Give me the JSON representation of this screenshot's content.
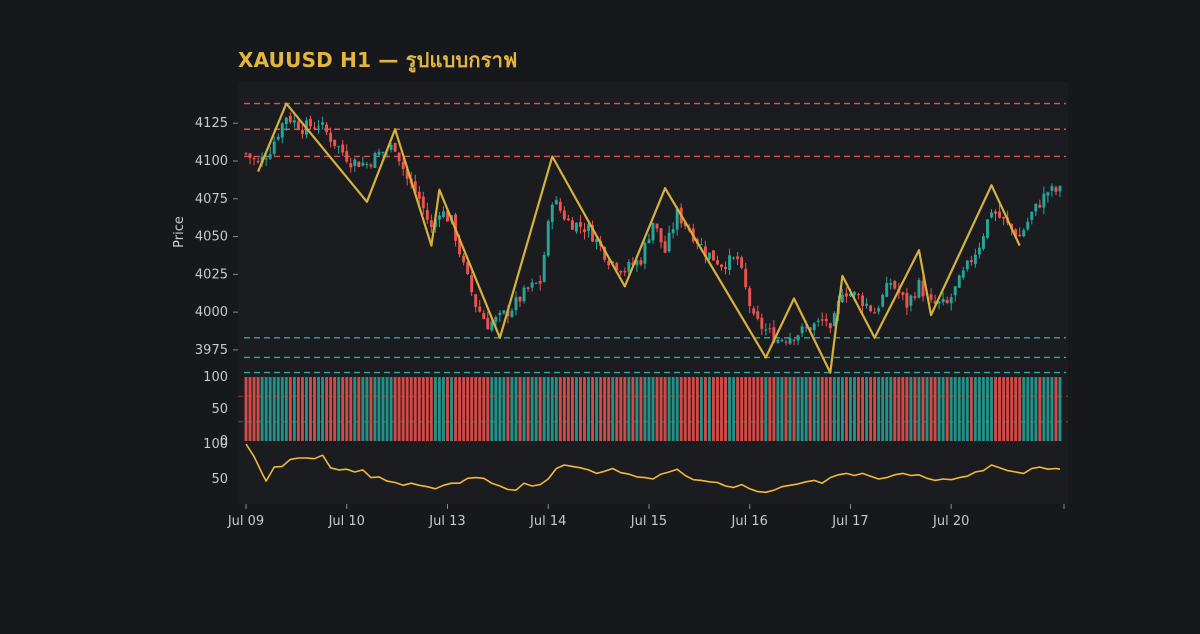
{
  "title": "XAUUSD H1 — รูปแบบกราฟ",
  "colors": {
    "background": "#17181b",
    "panel": "#1b1c20",
    "up": "#26a69a",
    "down": "#ef5350",
    "zigzag": "#d6b23c",
    "indicator_line": "#f0b93a",
    "resistance": "#d9534f",
    "support": "#2fa8a0",
    "text": "#c9c9c9",
    "title": "#e2b63f"
  },
  "chart_data": [
    {
      "type": "candlestick",
      "title": "XAUUSD H1 — รูปแบบกราฟ",
      "ylabel": "Price",
      "ylim": [
        3967,
        4143
      ],
      "yticks": [
        3975,
        4000,
        4025,
        4050,
        4075,
        4100,
        4125
      ],
      "xticks": [
        "Jul 09",
        "Jul 10",
        "Jul 13",
        "Jul 14",
        "Jul 15",
        "Jul 16",
        "Jul 17",
        "Jul 20"
      ],
      "xrange_bars": [
        0,
        202
      ],
      "xtick_bars": [
        0,
        25,
        50,
        75,
        100,
        125,
        150,
        175
      ],
      "grid": false,
      "resistance_levels": [
        4138,
        4121,
        4103
      ],
      "support_levels": [
        3983,
        3970,
        3960
      ],
      "zigzag": [
        {
          "bar": 3,
          "price": 4093
        },
        {
          "bar": 10,
          "price": 4138
        },
        {
          "bar": 30,
          "price": 4073
        },
        {
          "bar": 37,
          "price": 4121
        },
        {
          "bar": 46,
          "price": 4044
        },
        {
          "bar": 48,
          "price": 4081
        },
        {
          "bar": 63,
          "price": 3983
        },
        {
          "bar": 76,
          "price": 4103
        },
        {
          "bar": 94,
          "price": 4017
        },
        {
          "bar": 104,
          "price": 4082
        },
        {
          "bar": 129,
          "price": 3970
        },
        {
          "bar": 136,
          "price": 4009
        },
        {
          "bar": 145,
          "price": 3960
        },
        {
          "bar": 148,
          "price": 4024
        },
        {
          "bar": 156,
          "price": 3983
        },
        {
          "bar": 167,
          "price": 4041
        },
        {
          "bar": 170,
          "price": 3998
        },
        {
          "bar": 185,
          "price": 4084
        },
        {
          "bar": 192,
          "price": 4044
        }
      ],
      "closes_anchor": [
        [
          0,
          4105
        ],
        [
          3,
          4098
        ],
        [
          6,
          4108
        ],
        [
          10,
          4130
        ],
        [
          14,
          4122
        ],
        [
          18,
          4125
        ],
        [
          22,
          4112
        ],
        [
          26,
          4100
        ],
        [
          30,
          4098
        ],
        [
          33,
          4105
        ],
        [
          37,
          4110
        ],
        [
          40,
          4088
        ],
        [
          43,
          4075
        ],
        [
          46,
          4055
        ],
        [
          48,
          4068
        ],
        [
          51,
          4060
        ],
        [
          54,
          4030
        ],
        [
          57,
          4005
        ],
        [
          60,
          3992
        ],
        [
          63,
          3996
        ],
        [
          66,
          4003
        ],
        [
          70,
          4015
        ],
        [
          73,
          4020
        ],
        [
          76,
          4075
        ],
        [
          80,
          4060
        ],
        [
          85,
          4055
        ],
        [
          90,
          4035
        ],
        [
          94,
          4028
        ],
        [
          98,
          4035
        ],
        [
          101,
          4060
        ],
        [
          104,
          4040
        ],
        [
          107,
          4065
        ],
        [
          110,
          4055
        ],
        [
          114,
          4040
        ],
        [
          118,
          4032
        ],
        [
          122,
          4035
        ],
        [
          126,
          3995
        ],
        [
          129,
          3988
        ],
        [
          132,
          3982
        ],
        [
          136,
          3985
        ],
        [
          140,
          3990
        ],
        [
          144,
          3995
        ],
        [
          145,
          3985
        ],
        [
          148,
          4015
        ],
        [
          152,
          4010
        ],
        [
          156,
          4000
        ],
        [
          160,
          4020
        ],
        [
          164,
          4005
        ],
        [
          167,
          4018
        ],
        [
          170,
          4005
        ],
        [
          174,
          4005
        ],
        [
          178,
          4025
        ],
        [
          182,
          4045
        ],
        [
          185,
          4068
        ],
        [
          188,
          4060
        ],
        [
          192,
          4050
        ],
        [
          195,
          4065
        ],
        [
          199,
          4080
        ],
        [
          202,
          4080
        ]
      ],
      "volume_panel": {
        "ylim": [
          0,
          100
        ],
        "yticks": [
          0,
          50,
          100
        ],
        "ref_lines": [
          70,
          30
        ]
      },
      "indicator_panel": {
        "yticks": [
          50,
          100
        ],
        "ylim": [
          20,
          100
        ],
        "values_anchor": [
          [
            0,
            100
          ],
          [
            2,
            82
          ],
          [
            4,
            58
          ],
          [
            5,
            47
          ],
          [
            7,
            67
          ],
          [
            9,
            68
          ],
          [
            11,
            78
          ],
          [
            13,
            80
          ],
          [
            15,
            80
          ],
          [
            17,
            79
          ],
          [
            19,
            84
          ],
          [
            21,
            66
          ],
          [
            23,
            63
          ],
          [
            25,
            64
          ],
          [
            27,
            60
          ],
          [
            29,
            63
          ],
          [
            31,
            52
          ],
          [
            33,
            53
          ],
          [
            35,
            47
          ],
          [
            37,
            45
          ],
          [
            39,
            41
          ],
          [
            41,
            44
          ],
          [
            43,
            41
          ],
          [
            45,
            39
          ],
          [
            47,
            36
          ],
          [
            49,
            41
          ],
          [
            51,
            44
          ],
          [
            53,
            44
          ],
          [
            55,
            51
          ],
          [
            57,
            52
          ],
          [
            59,
            51
          ],
          [
            61,
            44
          ],
          [
            63,
            40
          ],
          [
            65,
            35
          ],
          [
            67,
            34
          ],
          [
            69,
            44
          ],
          [
            71,
            40
          ],
          [
            73,
            42
          ],
          [
            75,
            50
          ],
          [
            77,
            65
          ],
          [
            79,
            70
          ],
          [
            81,
            68
          ],
          [
            83,
            66
          ],
          [
            85,
            63
          ],
          [
            87,
            58
          ],
          [
            89,
            61
          ],
          [
            91,
            65
          ],
          [
            93,
            59
          ],
          [
            95,
            57
          ],
          [
            97,
            53
          ],
          [
            99,
            52
          ],
          [
            101,
            50
          ],
          [
            103,
            57
          ],
          [
            105,
            60
          ],
          [
            107,
            64
          ],
          [
            109,
            55
          ],
          [
            111,
            49
          ],
          [
            113,
            48
          ],
          [
            115,
            46
          ],
          [
            117,
            45
          ],
          [
            119,
            40
          ],
          [
            121,
            38
          ],
          [
            123,
            42
          ],
          [
            125,
            36
          ],
          [
            127,
            32
          ],
          [
            129,
            31
          ],
          [
            131,
            34
          ],
          [
            133,
            39
          ],
          [
            135,
            41
          ],
          [
            137,
            43
          ],
          [
            139,
            46
          ],
          [
            141,
            48
          ],
          [
            143,
            44
          ],
          [
            145,
            52
          ],
          [
            147,
            56
          ],
          [
            149,
            58
          ],
          [
            151,
            55
          ],
          [
            153,
            58
          ],
          [
            155,
            54
          ],
          [
            157,
            50
          ],
          [
            159,
            52
          ],
          [
            161,
            56
          ],
          [
            163,
            58
          ],
          [
            165,
            55
          ],
          [
            167,
            56
          ],
          [
            169,
            51
          ],
          [
            171,
            48
          ],
          [
            173,
            50
          ],
          [
            175,
            49
          ],
          [
            177,
            52
          ],
          [
            179,
            54
          ],
          [
            181,
            60
          ],
          [
            183,
            62
          ],
          [
            185,
            70
          ],
          [
            187,
            66
          ],
          [
            189,
            62
          ],
          [
            191,
            60
          ],
          [
            193,
            58
          ],
          [
            195,
            65
          ],
          [
            197,
            67
          ],
          [
            199,
            64
          ],
          [
            201,
            65
          ],
          [
            202,
            64
          ]
        ]
      }
    }
  ]
}
